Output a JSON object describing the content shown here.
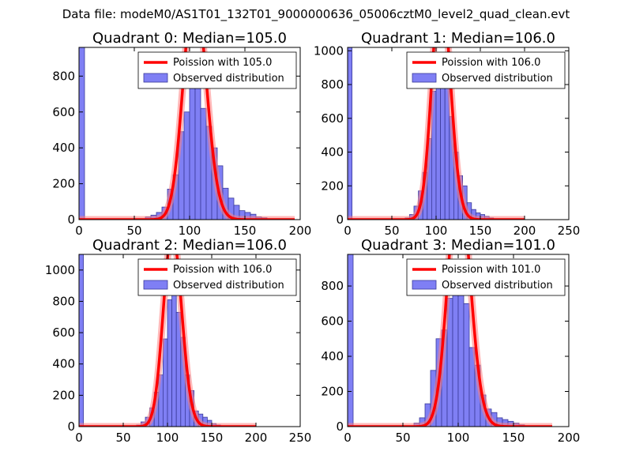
{
  "suptitle": "Data file: modeM0/AS1T01_132T01_9000000636_05006cztM0_level2_quad_clean.evt",
  "chart_data": [
    {
      "type": "bar",
      "title": "Quadrant 0: Median=105.0",
      "xlim": [
        0,
        200
      ],
      "ylim": [
        0,
        960
      ],
      "xticks": [
        0,
        50,
        100,
        150,
        200
      ],
      "yticks": [
        0,
        200,
        400,
        600,
        800
      ],
      "bin_width": 5,
      "bin_starts": [
        0,
        60,
        65,
        70,
        75,
        80,
        85,
        90,
        95,
        100,
        105,
        110,
        115,
        120,
        125,
        130,
        135,
        140,
        145,
        150,
        155,
        160,
        165
      ],
      "values": [
        960,
        15,
        25,
        40,
        70,
        170,
        250,
        490,
        600,
        800,
        880,
        620,
        520,
        400,
        300,
        175,
        120,
        80,
        50,
        40,
        30,
        15,
        10
      ],
      "poisson_mean": 105,
      "poisson_range": [
        0,
        195
      ],
      "legend": [
        "Poission with 105.0",
        "Observed distribution"
      ]
    },
    {
      "type": "bar",
      "title": "Quadrant 1: Median=106.0",
      "xlim": [
        0,
        250
      ],
      "ylim": [
        0,
        1020
      ],
      "xticks": [
        0,
        50,
        100,
        150,
        200,
        250
      ],
      "yticks": [
        0,
        200,
        400,
        600,
        800,
        1000
      ],
      "bin_width": 5,
      "bin_starts": [
        0,
        65,
        70,
        75,
        80,
        85,
        90,
        95,
        100,
        105,
        110,
        115,
        120,
        125,
        130,
        135,
        140,
        145,
        150,
        155,
        160,
        165
      ],
      "values": [
        1020,
        10,
        30,
        80,
        170,
        280,
        480,
        760,
        900,
        960,
        800,
        610,
        400,
        260,
        200,
        100,
        60,
        40,
        30,
        20,
        10,
        5
      ],
      "poisson_mean": 106,
      "poisson_range": [
        0,
        200
      ],
      "legend": [
        "Poission with 106.0",
        "Observed distribution"
      ]
    },
    {
      "type": "bar",
      "title": "Quadrant 2: Median=106.0",
      "xlim": [
        0,
        250
      ],
      "ylim": [
        0,
        1100
      ],
      "xticks": [
        0,
        50,
        100,
        150,
        200,
        250
      ],
      "yticks": [
        0,
        200,
        400,
        600,
        800,
        1000
      ],
      "bin_width": 5,
      "bin_starts": [
        0,
        65,
        70,
        75,
        80,
        85,
        90,
        95,
        100,
        105,
        110,
        115,
        120,
        125,
        130,
        135,
        140,
        145,
        150,
        155
      ],
      "values": [
        1100,
        10,
        30,
        60,
        120,
        220,
        330,
        560,
        810,
        1000,
        730,
        570,
        330,
        230,
        100,
        80,
        60,
        40,
        20,
        10
      ],
      "poisson_mean": 106,
      "poisson_range": [
        0,
        200
      ],
      "legend": [
        "Poission with 106.0",
        "Observed distribution"
      ]
    },
    {
      "type": "bar",
      "title": "Quadrant 3: Median=101.0",
      "xlim": [
        0,
        200
      ],
      "ylim": [
        0,
        980
      ],
      "xticks": [
        0,
        50,
        100,
        150,
        200
      ],
      "yticks": [
        0,
        200,
        400,
        600,
        800
      ],
      "bin_width": 5,
      "bin_starts": [
        0,
        60,
        65,
        70,
        75,
        80,
        85,
        90,
        95,
        100,
        105,
        110,
        115,
        120,
        125,
        130,
        135,
        140,
        145,
        150,
        155
      ],
      "values": [
        980,
        20,
        50,
        130,
        320,
        500,
        550,
        730,
        940,
        870,
        700,
        450,
        350,
        180,
        100,
        80,
        50,
        40,
        30,
        20,
        10
      ],
      "poisson_mean": 101,
      "poisson_range": [
        0,
        185
      ],
      "legend": [
        "Poission with 101.0",
        "Observed distribution"
      ]
    }
  ],
  "colors": {
    "bar_fill": "#7f7ff4",
    "bar_edge": "#3a3a9a",
    "curve": "#ff0000",
    "curve_glow": "#ff8080"
  }
}
